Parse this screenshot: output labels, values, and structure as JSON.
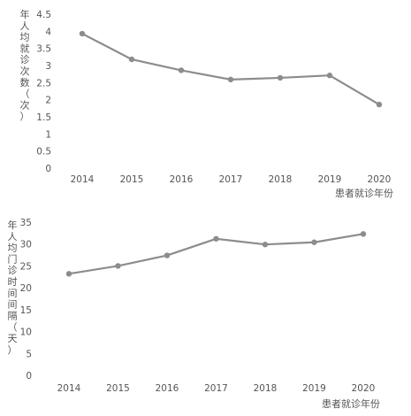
{
  "chart_data": [
    {
      "type": "line",
      "xlabel": "患者就诊年份",
      "ylabel": "年人均就诊次数（次）",
      "x": [
        "2014",
        "2015",
        "2016",
        "2017",
        "2018",
        "2019",
        "2020"
      ],
      "series": [
        {
          "values": [
            3.93,
            3.18,
            2.86,
            2.59,
            2.64,
            2.71,
            1.86
          ]
        }
      ],
      "yticks": [
        "0",
        "0.5",
        "1",
        "1.5",
        "2",
        "2.5",
        "3",
        "3.5",
        "4",
        "4.5"
      ],
      "ylim": [
        0,
        4.5
      ],
      "grid": false,
      "color": "#8c8c8c"
    },
    {
      "type": "line",
      "xlabel": "患者就诊年份",
      "ylabel": "年人均门诊时间间隔（天）",
      "x": [
        "2014",
        "2015",
        "2016",
        "2017",
        "2018",
        "2019",
        "2020"
      ],
      "series": [
        {
          "values": [
            23.2,
            25.0,
            27.4,
            31.2,
            29.9,
            30.4,
            32.3
          ]
        }
      ],
      "yticks": [
        "0",
        "5",
        "10",
        "15",
        "20",
        "25",
        "30",
        "35"
      ],
      "ylim": [
        0,
        35
      ],
      "grid": false,
      "color": "#8c8c8c"
    }
  ]
}
